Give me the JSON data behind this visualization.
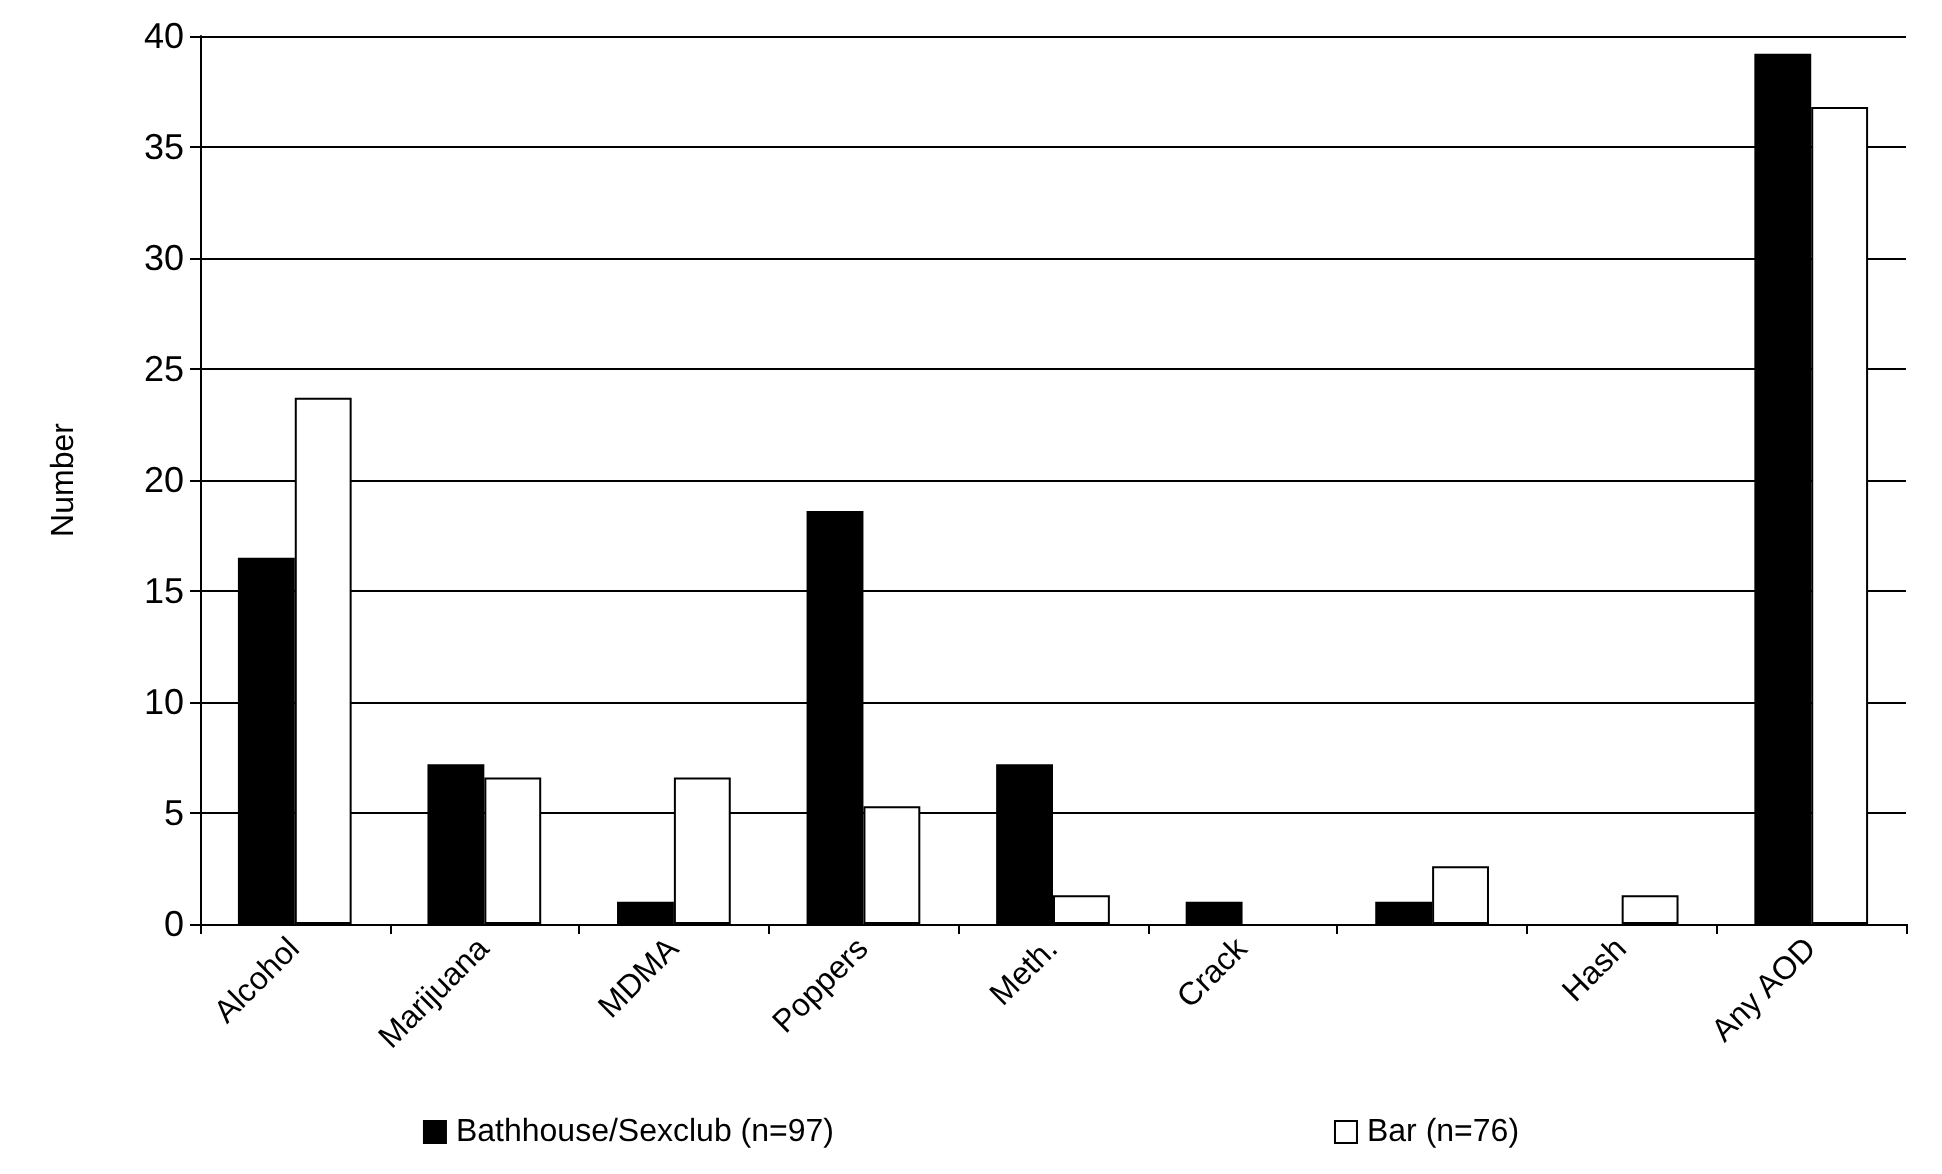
{
  "chart_data": {
    "type": "bar",
    "ylabel": "Number",
    "categories": [
      "Alcohol",
      "Marijuana",
      "MDMA",
      "Poppers",
      "Meth.",
      "Crack",
      null,
      "Hash",
      "Any AOD"
    ],
    "series": [
      {
        "name": "Bathhouse/Sexclub (n=97)",
        "color": "#000000",
        "values": [
          16.5,
          7.2,
          1.0,
          18.6,
          7.2,
          1.0,
          1.0,
          0,
          39.2
        ]
      },
      {
        "name": "Bar (n=76)",
        "color": "#ffffff",
        "values": [
          23.7,
          6.6,
          6.6,
          5.3,
          1.3,
          0,
          2.6,
          1.3,
          36.8
        ]
      }
    ],
    "ylim": [
      0,
      40
    ],
    "yticks": [
      0,
      5,
      10,
      15,
      20,
      25,
      30,
      35,
      40
    ],
    "grid": "y",
    "legend": "bottom"
  }
}
